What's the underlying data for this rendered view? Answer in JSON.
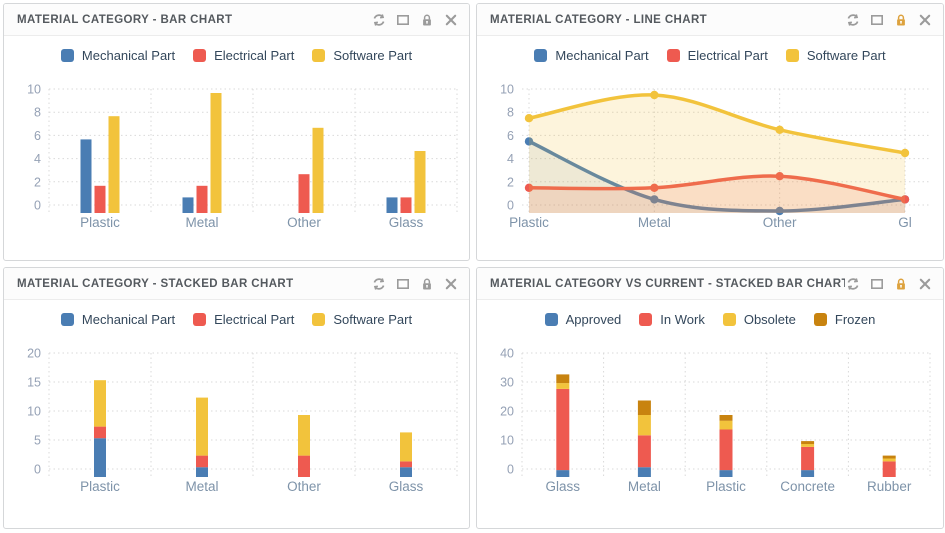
{
  "colors": {
    "series_blue": "#4A7DB3",
    "series_red": "#EE5A50",
    "series_yellow": "#F2C33C",
    "series_dark_orange": "#C8830F",
    "icon_gray": "#9B9B9B",
    "lock_locked_orange": "#DDA23E",
    "grid_line": "#d9d9d9",
    "panel_border": "#d5d7d9",
    "title_text": "#54595e",
    "legend_text": "#33475b",
    "tick_text": "#95a1b5",
    "category_text": "#7e93a9"
  },
  "toolbar": {
    "icons": [
      "refresh",
      "maximize",
      "lock",
      "close"
    ]
  },
  "chart_data": [
    {
      "type": "bar",
      "title": "MATERIAL CATEGORY - BAR CHART",
      "locked": false,
      "categories": [
        "Plastic",
        "Metal",
        "Other",
        "Glass"
      ],
      "series": [
        {
          "name": "Mechanical Part",
          "color": "#4A7DB3",
          "values": [
            6,
            1,
            0,
            1
          ]
        },
        {
          "name": "Electrical Part",
          "color": "#EE5A50",
          "values": [
            2,
            2,
            3,
            1
          ]
        },
        {
          "name": "Software Part",
          "color": "#F2C33C",
          "values": [
            8,
            10,
            7,
            5
          ]
        }
      ],
      "ylim": [
        0,
        10
      ],
      "yticks": [
        0,
        2,
        4,
        6,
        8,
        10
      ],
      "grid": "dotted",
      "legend_position": "top"
    },
    {
      "type": "line",
      "title": "MATERIAL CATEGORY - LINE CHART",
      "locked": true,
      "categories": [
        "Plastic",
        "Metal",
        "Other",
        "Glass"
      ],
      "x_labels_display": [
        "Plastic",
        "Metal",
        "Other",
        "Gl"
      ],
      "smooth": true,
      "area": true,
      "series": [
        {
          "name": "Mechanical Part",
          "color": "#4A7DB3",
          "values": [
            6,
            1,
            0,
            1
          ]
        },
        {
          "name": "Electrical Part",
          "color": "#EE5A50",
          "values": [
            2,
            2,
            3,
            1
          ]
        },
        {
          "name": "Software Part",
          "color": "#F2C33C",
          "values": [
            8,
            10,
            7,
            5
          ]
        }
      ],
      "ylim": [
        0,
        10
      ],
      "yticks": [
        0,
        2,
        4,
        6,
        8,
        10
      ],
      "grid": "dotted",
      "legend_position": "top"
    },
    {
      "type": "stacked_bar",
      "title": "MATERIAL CATEGORY - STACKED BAR CHART",
      "locked": false,
      "categories": [
        "Plastic",
        "Metal",
        "Other",
        "Glass"
      ],
      "series": [
        {
          "name": "Mechanical Part",
          "color": "#4A7DB3",
          "values": [
            6,
            1,
            0,
            1
          ]
        },
        {
          "name": "Electrical Part",
          "color": "#EE5A50",
          "values": [
            2,
            2,
            3,
            1
          ]
        },
        {
          "name": "Software Part",
          "color": "#F2C33C",
          "values": [
            8,
            10,
            7,
            5
          ]
        }
      ],
      "ylim": [
        0,
        20
      ],
      "yticks": [
        0,
        5,
        10,
        15,
        20
      ],
      "grid": "dotted",
      "legend_position": "top"
    },
    {
      "type": "stacked_bar",
      "title": "MATERIAL CATEGORY VS CURRENT - STACKED BAR CHART",
      "locked": true,
      "categories": [
        "Glass",
        "Metal",
        "Plastic",
        "Concrete",
        "Rubber"
      ],
      "series": [
        {
          "name": "Approved",
          "color": "#4A7DB3",
          "values": [
            1,
            2,
            1,
            1,
            0
          ]
        },
        {
          "name": "In Work",
          "color": "#EE5A50",
          "values": [
            28,
            11,
            14,
            8,
            4
          ]
        },
        {
          "name": "Obsolete",
          "color": "#F2C33C",
          "values": [
            2,
            7,
            3,
            1,
            1
          ]
        },
        {
          "name": "Frozen",
          "color": "#C8830F",
          "values": [
            3,
            5,
            2,
            1,
            1
          ]
        }
      ],
      "ylim": [
        0,
        40
      ],
      "yticks": [
        0,
        10,
        20,
        30,
        40
      ],
      "grid": "dotted",
      "legend_position": "top"
    }
  ]
}
